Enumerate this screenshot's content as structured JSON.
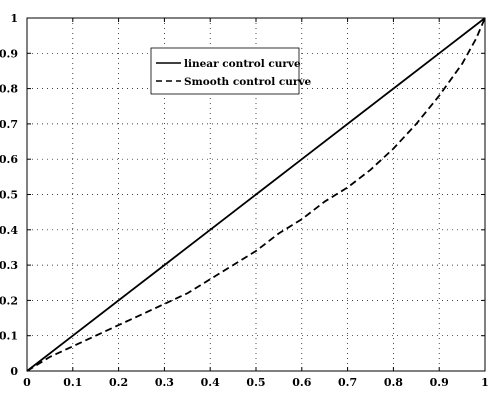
{
  "chart_data": {
    "type": "line",
    "title": "",
    "xlabel": "",
    "ylabel": "",
    "xlim": [
      0,
      1
    ],
    "ylim": [
      0,
      1
    ],
    "xticks": [
      "0",
      "0.1",
      "0.2",
      "0.3",
      "0.4",
      "0.5",
      "0.6",
      "0.7",
      "0.8",
      "0.9",
      "1"
    ],
    "yticks": [
      "0",
      "0.1",
      "0.2",
      "0.3",
      "0.4",
      "0.5",
      "0.6",
      "0.7",
      "0.8",
      "0.9",
      "1"
    ],
    "grid": true,
    "legend_position": "top-center",
    "series": [
      {
        "name": "linear control curve",
        "style": "solid",
        "color": "#000000",
        "x": [
          0,
          0.1,
          0.2,
          0.3,
          0.4,
          0.5,
          0.6,
          0.7,
          0.8,
          0.9,
          1.0
        ],
        "y": [
          0,
          0.1,
          0.2,
          0.3,
          0.4,
          0.5,
          0.6,
          0.7,
          0.8,
          0.9,
          1.0
        ]
      },
      {
        "name": "Smooth control curve",
        "style": "dashed",
        "color": "#000000",
        "x": [
          0,
          0.05,
          0.1,
          0.15,
          0.2,
          0.25,
          0.3,
          0.35,
          0.4,
          0.45,
          0.5,
          0.55,
          0.6,
          0.65,
          0.7,
          0.75,
          0.8,
          0.85,
          0.9,
          0.95,
          0.98,
          1.0
        ],
        "y": [
          0,
          0.04,
          0.07,
          0.1,
          0.13,
          0.16,
          0.19,
          0.22,
          0.26,
          0.3,
          0.34,
          0.39,
          0.43,
          0.48,
          0.52,
          0.57,
          0.63,
          0.7,
          0.78,
          0.87,
          0.94,
          1.0
        ]
      }
    ]
  }
}
